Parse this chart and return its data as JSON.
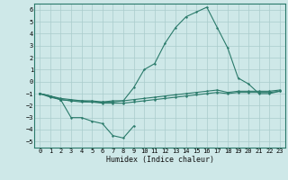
{
  "title": "",
  "xlabel": "Humidex (Indice chaleur)",
  "bg_color": "#cee8e8",
  "grid_color": "#aacccc",
  "line_color": "#2a7a6a",
  "xlim": [
    -0.5,
    23.5
  ],
  "ylim": [
    -5.5,
    6.5
  ],
  "yticks": [
    -5,
    -4,
    -3,
    -2,
    -1,
    0,
    1,
    2,
    3,
    4,
    5,
    6
  ],
  "xticks": [
    0,
    1,
    2,
    3,
    4,
    5,
    6,
    7,
    8,
    9,
    10,
    11,
    12,
    13,
    14,
    15,
    16,
    17,
    18,
    19,
    20,
    21,
    22,
    23
  ],
  "line1_x": [
    0,
    1,
    2,
    3,
    4,
    5,
    6,
    7,
    8,
    9,
    10,
    11,
    12,
    13,
    14,
    15,
    16,
    17,
    18,
    19,
    20,
    21,
    22,
    23
  ],
  "line1_y": [
    -1.0,
    -1.3,
    -1.5,
    -1.6,
    -1.7,
    -1.7,
    -1.8,
    -1.8,
    -1.8,
    -1.7,
    -1.6,
    -1.5,
    -1.4,
    -1.3,
    -1.2,
    -1.1,
    -1.0,
    -0.9,
    -1.0,
    -0.9,
    -0.9,
    -0.9,
    -0.9,
    -0.8
  ],
  "line2_x": [
    0,
    1,
    2,
    3,
    4,
    5,
    6,
    7,
    8,
    9,
    10,
    11,
    12,
    13,
    14,
    15,
    16,
    17,
    18,
    19,
    20,
    21,
    22,
    23
  ],
  "line2_y": [
    -1.0,
    -1.2,
    -1.4,
    -1.5,
    -1.6,
    -1.6,
    -1.7,
    -1.7,
    -1.6,
    -1.5,
    -1.4,
    -1.3,
    -1.2,
    -1.1,
    -1.0,
    -0.9,
    -0.8,
    -0.7,
    -0.9,
    -0.8,
    -0.8,
    -0.8,
    -0.8,
    -0.7
  ],
  "line3_x": [
    0,
    1,
    2,
    3,
    4,
    5,
    6,
    7,
    8,
    9
  ],
  "line3_y": [
    -1.0,
    -1.2,
    -1.5,
    -3.0,
    -3.0,
    -3.3,
    -3.5,
    -4.5,
    -4.7,
    -3.7
  ],
  "line4_x": [
    0,
    1,
    2,
    3,
    4,
    5,
    6,
    7,
    8,
    9,
    10,
    11,
    12,
    13,
    14,
    15,
    16,
    17,
    18,
    19,
    20,
    21,
    22,
    23
  ],
  "line4_y": [
    -1.0,
    -1.2,
    -1.5,
    -1.6,
    -1.6,
    -1.7,
    -1.7,
    -1.6,
    -1.6,
    -0.5,
    1.0,
    1.5,
    3.2,
    4.5,
    5.4,
    5.8,
    6.2,
    4.5,
    2.8,
    0.3,
    -0.2,
    -1.0,
    -1.0,
    -0.8
  ],
  "tick_fontsize": 5,
  "xlabel_fontsize": 6
}
